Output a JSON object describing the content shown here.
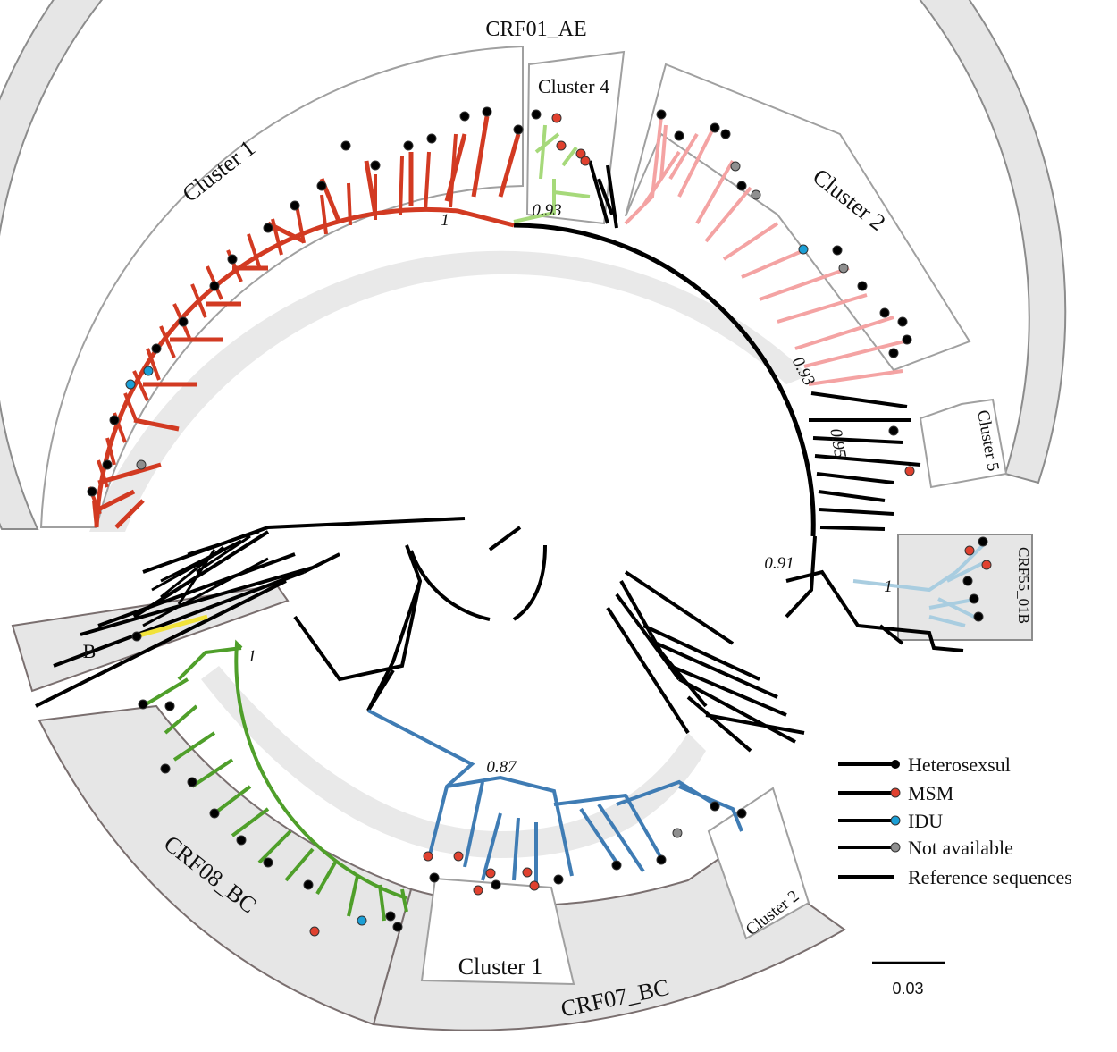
{
  "labels": {
    "crf01_ae": "CRF01_AE",
    "cluster4": "Cluster 4",
    "cluster1_top": "Cluster 1",
    "cluster2_top": "Cluster 2",
    "cluster5": "Cluster 5",
    "crf55_01b": "CRF55_01B",
    "b": "B",
    "crf08_bc": "CRF08_BC",
    "cluster1_bottom": "Cluster 1",
    "crf07_bc": "CRF07_BC",
    "cluster2_bottom": "Cluster 2"
  },
  "support_values": {
    "crf01_cluster1": "1",
    "cluster4": "0.93",
    "cluster2": "0.93",
    "cluster5": "0.95",
    "crf55": "0.91",
    "crf55_inner": "1",
    "crf08": "1",
    "crf07": "0.87"
  },
  "legend": {
    "heterosexual": "Heterosexsul",
    "msm": "MSM",
    "idu": "IDU",
    "not_available": "Not available",
    "reference": "Reference sequences"
  },
  "scale_bar": {
    "label": "0.03"
  },
  "colors": {
    "band": "#e6e6e6",
    "band_stroke": "#8c8c8c",
    "heterosexual": "#000000",
    "msm": "#e0412f",
    "idu": "#1b9fd6",
    "not_available": "#8f8f8f",
    "crf01_cluster1": "#d23a22",
    "crf01_cluster4": "#a6d97a",
    "crf01_cluster2": "#f4a3a3",
    "crf55": "#a9cde0",
    "b": "#f1e23a",
    "crf08": "#4f9f2a",
    "crf07": "#3f7cb4",
    "reference": "#000000"
  }
}
